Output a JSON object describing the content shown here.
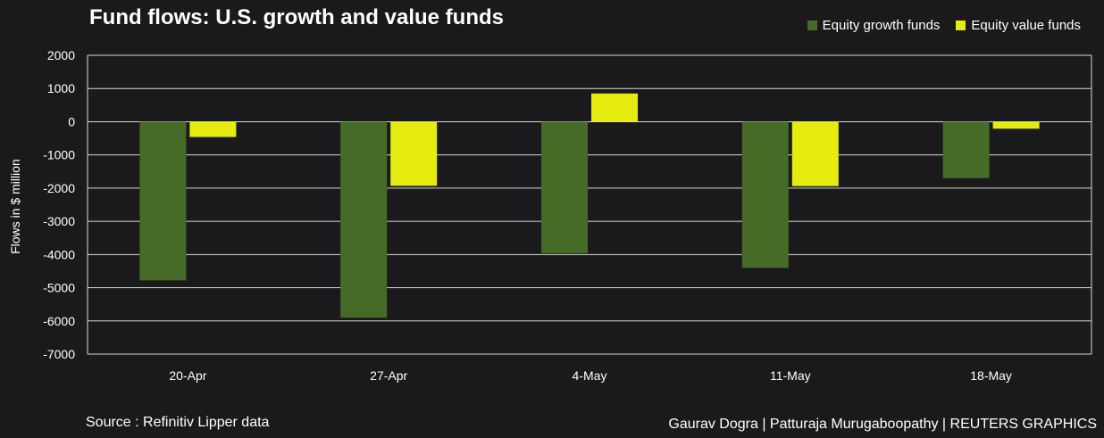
{
  "colors": {
    "background": "#1a1a1c",
    "growth": "#466b26",
    "value": "#e6ec10",
    "grid": "#d9d9d9"
  },
  "legend": {
    "growth_label": "Equity growth funds",
    "value_label": "Equity value funds"
  },
  "footer": {
    "source": "Source : Refinitiv Lipper data",
    "credit": "Gaurav Dogra | Patturaja Murugaboopathy | REUTERS GRAPHICS"
  },
  "chart_data": {
    "type": "bar",
    "title": "Fund flows: U.S. growth and value funds",
    "xlabel": "",
    "ylabel": "Flows in $ million",
    "categories": [
      "20-Apr",
      "27-Apr",
      "4-May",
      "11-May",
      "18-May"
    ],
    "series": [
      {
        "name": "Equity growth funds",
        "values": [
          -4780,
          -5900,
          -3960,
          -4400,
          -1700
        ]
      },
      {
        "name": "Equity value funds",
        "values": [
          -460,
          -1930,
          850,
          -1940,
          -210
        ]
      }
    ],
    "ylim": [
      -7000,
      2000
    ],
    "yticks": [
      2000,
      1000,
      0,
      -1000,
      -2000,
      -3000,
      -4000,
      -5000,
      -6000,
      -7000
    ],
    "grid": true,
    "legend_position": "top-right"
  }
}
